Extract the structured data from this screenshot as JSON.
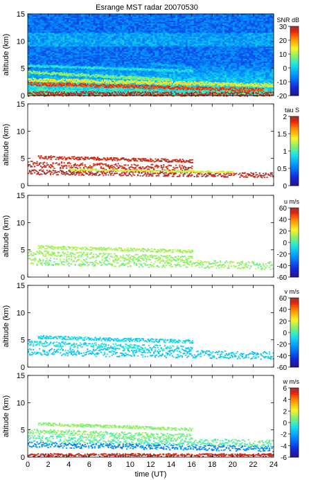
{
  "figure": {
    "title": "Esrange MST radar 20070530"
  },
  "chart_data": [
    {
      "type": "heatmap",
      "panel_id": "snr",
      "title": "Esrange MST radar 20070530",
      "xlabel": "",
      "ylabel": "altitude (km)",
      "xlim": [
        0,
        24
      ],
      "ylim": [
        0,
        15
      ],
      "yticks": [
        0,
        5,
        10,
        15
      ],
      "xticks": [
        0,
        2,
        4,
        6,
        8,
        10,
        12,
        14,
        16,
        18,
        20,
        22,
        24
      ],
      "show_xticklabels": false,
      "colorbar": {
        "label": "SNR dB",
        "min": -20,
        "max": 30,
        "ticks": [
          -20,
          -10,
          0,
          10,
          20,
          30
        ]
      },
      "fill_background": true,
      "layers": [
        {
          "name": "",
          "y_start": 0.4,
          "y_end": 0.3,
          "thickness": 0.9,
          "value": 28,
          "t0": 0,
          "t1": 24
        },
        {
          "name": "",
          "y_start": 2.3,
          "y_end": 1.1,
          "thickness": 0.6,
          "value": 25,
          "t0": 0,
          "t1": 23
        },
        {
          "name": "",
          "y_start": 3.0,
          "y_end": 2.0,
          "thickness": 0.6,
          "value": 14,
          "t0": 0,
          "t1": 24
        },
        {
          "name": "",
          "y_start": 4.4,
          "y_end": 3.0,
          "thickness": 0.5,
          "value": 8,
          "t0": 0,
          "t1": 14
        },
        {
          "name": "",
          "y_start": 5.6,
          "y_end": 4.6,
          "thickness": 0.4,
          "value": 2,
          "t0": 0,
          "t1": 16
        },
        {
          "name": "",
          "y_start": 6.0,
          "y_end": 5.2,
          "thickness": 0.3,
          "value": -3,
          "t0": 12,
          "t1": 16
        }
      ]
    },
    {
      "type": "heatmap",
      "panel_id": "tau",
      "xlabel": "",
      "ylabel": "altitude (km)",
      "xlim": [
        0,
        24
      ],
      "ylim": [
        0,
        15
      ],
      "yticks": [
        0,
        5,
        10,
        15
      ],
      "xticks": [
        0,
        2,
        4,
        6,
        8,
        10,
        12,
        14,
        16,
        18,
        20,
        22,
        24
      ],
      "show_xticklabels": false,
      "colorbar": {
        "label": "tau S",
        "min": 0,
        "max": 2,
        "ticks": [
          0,
          0.5,
          1,
          1.5,
          2
        ]
      },
      "fill_background": false,
      "layers": [
        {
          "name": "",
          "y_start": 2.6,
          "y_end": 2.0,
          "thickness": 0.9,
          "value": 1.95,
          "t0": 0,
          "t1": 24
        },
        {
          "name": "",
          "y_start": 4.0,
          "y_end": 3.2,
          "thickness": 1.2,
          "value": 1.9,
          "t0": 0,
          "t1": 16
        },
        {
          "name": "",
          "y_start": 5.3,
          "y_end": 4.6,
          "thickness": 0.6,
          "value": 1.9,
          "t0": 1,
          "t1": 16
        },
        {
          "name": "",
          "y_start": 3.0,
          "y_end": 2.6,
          "thickness": 0.3,
          "value": 1.3,
          "t0": 4,
          "t1": 20
        }
      ]
    },
    {
      "type": "heatmap",
      "panel_id": "u",
      "xlabel": "",
      "ylabel": "altitude (km)",
      "xlim": [
        0,
        24
      ],
      "ylim": [
        0,
        15
      ],
      "yticks": [
        0,
        5,
        10,
        15
      ],
      "xticks": [
        0,
        2,
        4,
        6,
        8,
        10,
        12,
        14,
        16,
        18,
        20,
        22,
        24
      ],
      "show_xticklabels": false,
      "colorbar": {
        "label": "u m/s",
        "min": -60,
        "max": 60,
        "ticks": [
          -60,
          -40,
          -20,
          0,
          20,
          40,
          60
        ]
      },
      "fill_background": false,
      "layers": [
        {
          "name": "",
          "y_start": 3.0,
          "y_end": 2.2,
          "thickness": 1.4,
          "value": 8,
          "t0": 0,
          "t1": 24
        },
        {
          "name": "",
          "y_start": 4.5,
          "y_end": 3.4,
          "thickness": 1.0,
          "value": 10,
          "t0": 0,
          "t1": 16
        },
        {
          "name": "",
          "y_start": 5.6,
          "y_end": 4.8,
          "thickness": 0.6,
          "value": 12,
          "t0": 1,
          "t1": 16
        }
      ]
    },
    {
      "type": "heatmap",
      "panel_id": "v",
      "xlabel": "",
      "ylabel": "altitude (km)",
      "xlim": [
        0,
        24
      ],
      "ylim": [
        0,
        15
      ],
      "yticks": [
        0,
        5,
        10,
        15
      ],
      "xticks": [
        0,
        2,
        4,
        6,
        8,
        10,
        12,
        14,
        16,
        18,
        20,
        22,
        24
      ],
      "show_xticklabels": false,
      "colorbar": {
        "label": "v m/s",
        "min": -60,
        "max": 60,
        "ticks": [
          -60,
          -40,
          -20,
          0,
          20,
          40,
          60
        ]
      },
      "fill_background": false,
      "layers": [
        {
          "name": "",
          "y_start": 3.0,
          "y_end": 2.2,
          "thickness": 1.4,
          "value": -12,
          "t0": 0,
          "t1": 24
        },
        {
          "name": "",
          "y_start": 4.5,
          "y_end": 3.4,
          "thickness": 1.0,
          "value": -8,
          "t0": 0,
          "t1": 16
        },
        {
          "name": "",
          "y_start": 5.6,
          "y_end": 4.8,
          "thickness": 0.6,
          "value": -10,
          "t0": 1,
          "t1": 16
        }
      ]
    },
    {
      "type": "heatmap",
      "panel_id": "w",
      "xlabel": "time (UT)",
      "ylabel": "altitude (km)",
      "xlim": [
        0,
        24
      ],
      "ylim": [
        0,
        15
      ],
      "yticks": [
        0,
        5,
        10,
        15
      ],
      "xticks": [
        0,
        2,
        4,
        6,
        8,
        10,
        12,
        14,
        16,
        18,
        20,
        22,
        24
      ],
      "show_xticklabels": true,
      "colorbar": {
        "label": "w m/s",
        "min": -6,
        "max": 6,
        "ticks": [
          -6,
          -4,
          -2,
          0,
          2,
          4,
          6
        ]
      },
      "fill_background": false,
      "layers": [
        {
          "name": "",
          "y_start": 0.5,
          "y_end": 0.5,
          "thickness": 0.5,
          "value": 5.5,
          "t0": 0,
          "t1": 24
        },
        {
          "name": "",
          "y_start": 2.4,
          "y_end": 1.6,
          "thickness": 1.0,
          "value": -2.5,
          "t0": 0,
          "t1": 24
        },
        {
          "name": "",
          "y_start": 3.5,
          "y_end": 2.6,
          "thickness": 1.2,
          "value": 0.2,
          "t0": 0,
          "t1": 24
        },
        {
          "name": "",
          "y_start": 4.8,
          "y_end": 3.8,
          "thickness": 1.0,
          "value": 0.6,
          "t0": 0,
          "t1": 16
        },
        {
          "name": "",
          "y_start": 6.2,
          "y_end": 5.2,
          "thickness": 0.5,
          "value": 0.9,
          "t0": 1,
          "t1": 16
        }
      ]
    }
  ]
}
